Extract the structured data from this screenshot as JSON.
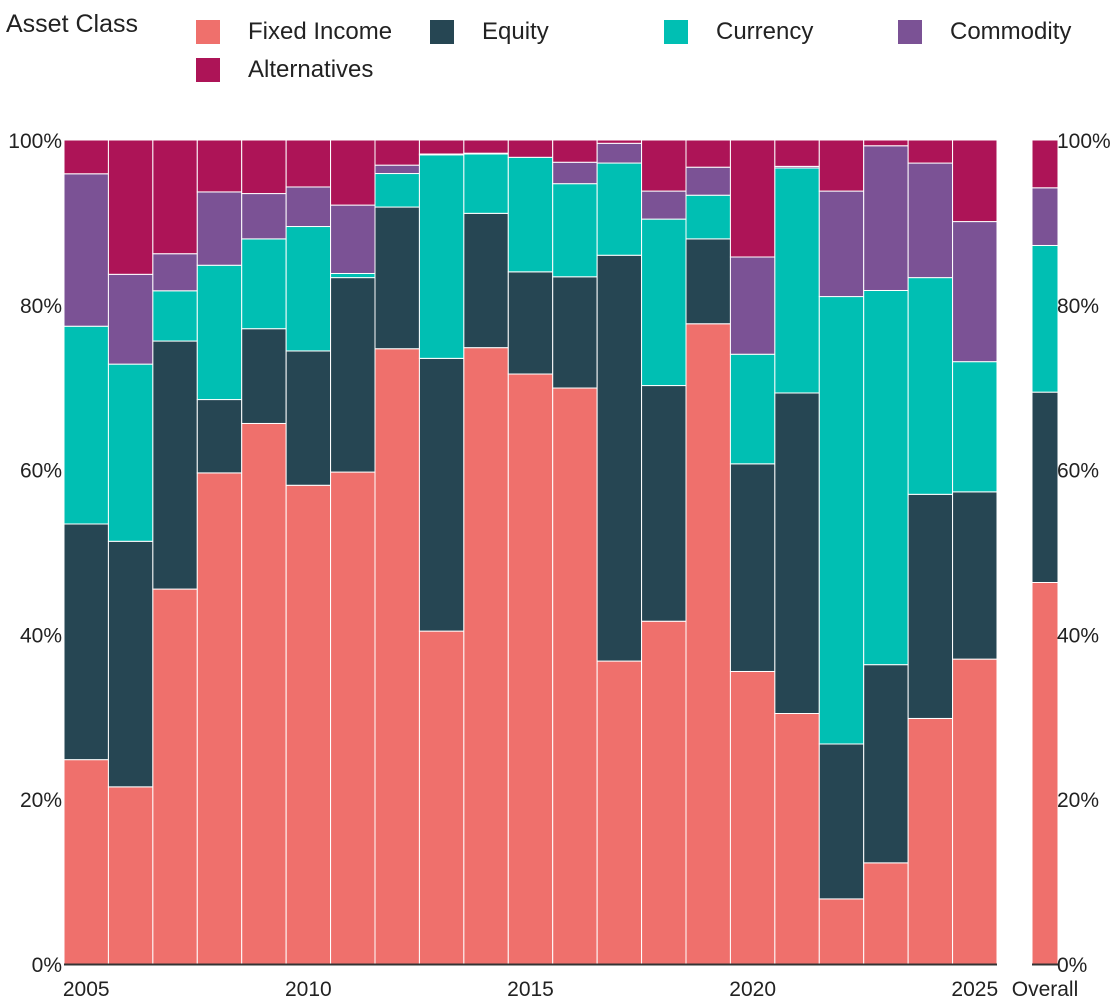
{
  "legend": {
    "title": "Asset Class",
    "items": [
      {
        "label": "Fixed Income",
        "color": "#ef706c"
      },
      {
        "label": "Equity",
        "color": "#264653"
      },
      {
        "label": "Currency",
        "color": "#00bfb3"
      },
      {
        "label": "Commodity",
        "color": "#7b5295"
      },
      {
        "label": "Alternatives",
        "color": "#ad1457"
      }
    ]
  },
  "chart_data": {
    "type": "bar",
    "stacked": true,
    "normalized": true,
    "title": "",
    "xlabel": "",
    "ylabel": "",
    "ylim": [
      0,
      100
    ],
    "y_ticks": [
      "0%",
      "20%",
      "40%",
      "60%",
      "80%",
      "100%"
    ],
    "x_tick_labels": [
      "2005",
      "2010",
      "2015",
      "2020",
      "2025"
    ],
    "categories": [
      "2005",
      "2006",
      "2007",
      "2008",
      "2009",
      "2010",
      "2011",
      "2012",
      "2013",
      "2014",
      "2015",
      "2016",
      "2017",
      "2018",
      "2019",
      "2020",
      "2021",
      "2022",
      "2023",
      "2024",
      "2025"
    ],
    "series": [
      {
        "name": "Fixed Income",
        "values": [
          24.8,
          21.5,
          45.5,
          59.6,
          65.6,
          58.1,
          59.7,
          73.4,
          40.4,
          74.8,
          71.6,
          69.9,
          36.8,
          41.6,
          77.7,
          35.5,
          30.4,
          7.9,
          12.3,
          29.8,
          37.0
        ]
      },
      {
        "name": "Equity",
        "values": [
          28.6,
          29.8,
          30.1,
          8.9,
          11.5,
          16.3,
          23.6,
          16.9,
          33.1,
          16.3,
          12.4,
          13.5,
          49.3,
          28.6,
          10.3,
          25.2,
          38.9,
          18.8,
          24.1,
          27.2,
          20.3
        ]
      },
      {
        "name": "Currency",
        "values": [
          24.0,
          21.5,
          6.1,
          16.3,
          10.9,
          15.1,
          0.5,
          4.0,
          24.7,
          7.2,
          13.9,
          11.3,
          11.2,
          20.2,
          5.3,
          13.3,
          27.3,
          54.3,
          45.5,
          26.3,
          15.8
        ]
      },
      {
        "name": "Commodity",
        "values": [
          18.5,
          10.9,
          4.5,
          8.9,
          5.5,
          4.8,
          8.3,
          1.0,
          0.1,
          0.1,
          0.0,
          2.6,
          2.4,
          3.4,
          3.4,
          11.8,
          0.2,
          12.8,
          17.6,
          13.9,
          17.0
        ]
      },
      {
        "name": "Alternatives",
        "values": [
          4.1,
          16.3,
          13.8,
          6.3,
          6.5,
          5.7,
          7.9,
          3.0,
          1.7,
          1.6,
          2.1,
          2.7,
          0.4,
          6.2,
          3.3,
          14.2,
          3.2,
          6.2,
          0.7,
          2.8,
          9.9
        ]
      }
    ],
    "overall": {
      "label": "Overall",
      "values": {
        "Fixed Income": 46.3,
        "Equity": 23.1,
        "Currency": 17.8,
        "Commodity": 7.0,
        "Alternatives": 5.8
      }
    }
  }
}
